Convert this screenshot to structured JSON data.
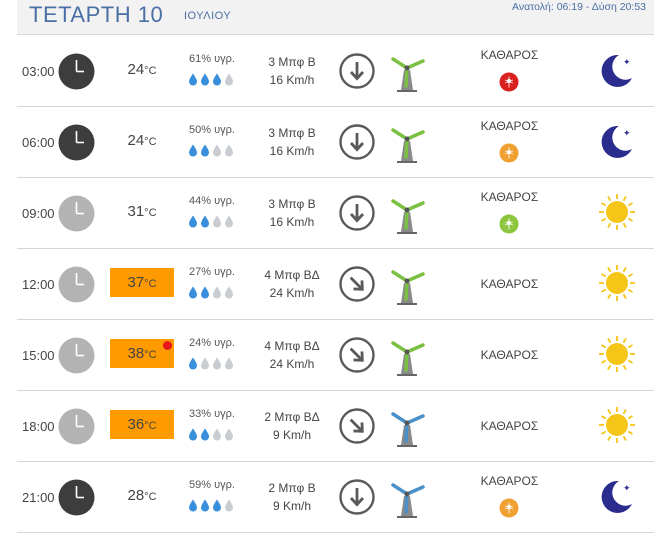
{
  "header": {
    "day_title": "ΤΕΤΑΡΤΗ 10",
    "month": "ΙΟΥΛΙΟΥ",
    "sun_times": "Ανατολή: 06:19 - Δύση 20:53"
  },
  "colors": {
    "title_blue": "#4a6fa5",
    "hot_temp_bg": "#ff9b00",
    "heat_dot": "#e8151b",
    "drop_filled": "#3a8fdc",
    "drop_empty": "#c9ccd0",
    "turbine_green": "#7ac142",
    "turbine_blue": "#4a90c9",
    "moon": "#2b2d8e",
    "sun": "#f5c518",
    "uv_red": "#d9201f",
    "uv_orange": "#f0a030",
    "uv_green": "#8cc63f"
  },
  "rows": [
    {
      "time": "03:00",
      "clock": "dark-clock-icon",
      "temp": "24",
      "unit": "°C",
      "hot": false,
      "heat_alert": false,
      "humidity": "61% υγρ.",
      "drops_filled": 3,
      "wind_speed": "3 Μπφ Β",
      "wind_kmh": "16 Km/h",
      "wind_dir": "down",
      "turbine": "green",
      "condition": "ΚΑΘΑΡΟΣ",
      "uv": "red",
      "sky": "moon-icon"
    },
    {
      "time": "06:00",
      "clock": "dark-clock-icon",
      "temp": "24",
      "unit": "°C",
      "hot": false,
      "heat_alert": false,
      "humidity": "50% υγρ.",
      "drops_filled": 2,
      "wind_speed": "3 Μπφ Β",
      "wind_kmh": "16 Km/h",
      "wind_dir": "down",
      "turbine": "green",
      "condition": "ΚΑΘΑΡΟΣ",
      "uv": "orange",
      "sky": "moon-icon"
    },
    {
      "time": "09:00",
      "clock": "light-clock-icon",
      "temp": "31",
      "unit": "°C",
      "hot": false,
      "heat_alert": false,
      "humidity": "44% υγρ.",
      "drops_filled": 2,
      "wind_speed": "3 Μπφ Β",
      "wind_kmh": "16 Km/h",
      "wind_dir": "down",
      "turbine": "green",
      "condition": "ΚΑΘΑΡΟΣ",
      "uv": "green",
      "sky": "sun-icon"
    },
    {
      "time": "12:00",
      "clock": "light-clock-icon",
      "temp": "37",
      "unit": "°C",
      "hot": true,
      "heat_alert": false,
      "humidity": "27% υγρ.",
      "drops_filled": 2,
      "wind_speed": "4 Μπφ ΒΔ",
      "wind_kmh": "24 Km/h",
      "wind_dir": "down-right",
      "turbine": "green",
      "condition": "ΚΑΘΑΡΟΣ",
      "uv": "",
      "sky": "sun-icon"
    },
    {
      "time": "15:00",
      "clock": "light-clock-icon",
      "temp": "38",
      "unit": "°C",
      "hot": true,
      "heat_alert": true,
      "humidity": "24% υγρ.",
      "drops_filled": 1,
      "wind_speed": "4 Μπφ ΒΔ",
      "wind_kmh": "24 Km/h",
      "wind_dir": "down-right",
      "turbine": "green",
      "condition": "ΚΑΘΑΡΟΣ",
      "uv": "",
      "sky": "sun-icon"
    },
    {
      "time": "18:00",
      "clock": "light-clock-icon",
      "temp": "36",
      "unit": "°C",
      "hot": true,
      "heat_alert": false,
      "humidity": "33% υγρ.",
      "drops_filled": 2,
      "wind_speed": "2 Μπφ ΒΔ",
      "wind_kmh": "9 Km/h",
      "wind_dir": "down-right",
      "turbine": "blue",
      "condition": "ΚΑΘΑΡΟΣ",
      "uv": "",
      "sky": "sun-icon"
    },
    {
      "time": "21:00",
      "clock": "dark-clock-icon",
      "temp": "28",
      "unit": "°C",
      "hot": false,
      "heat_alert": false,
      "humidity": "59% υγρ.",
      "drops_filled": 3,
      "wind_speed": "2 Μπφ Β",
      "wind_kmh": "9 Km/h",
      "wind_dir": "down",
      "turbine": "blue",
      "condition": "ΚΑΘΑΡΟΣ",
      "uv": "orange",
      "sky": "moon-icon"
    }
  ]
}
